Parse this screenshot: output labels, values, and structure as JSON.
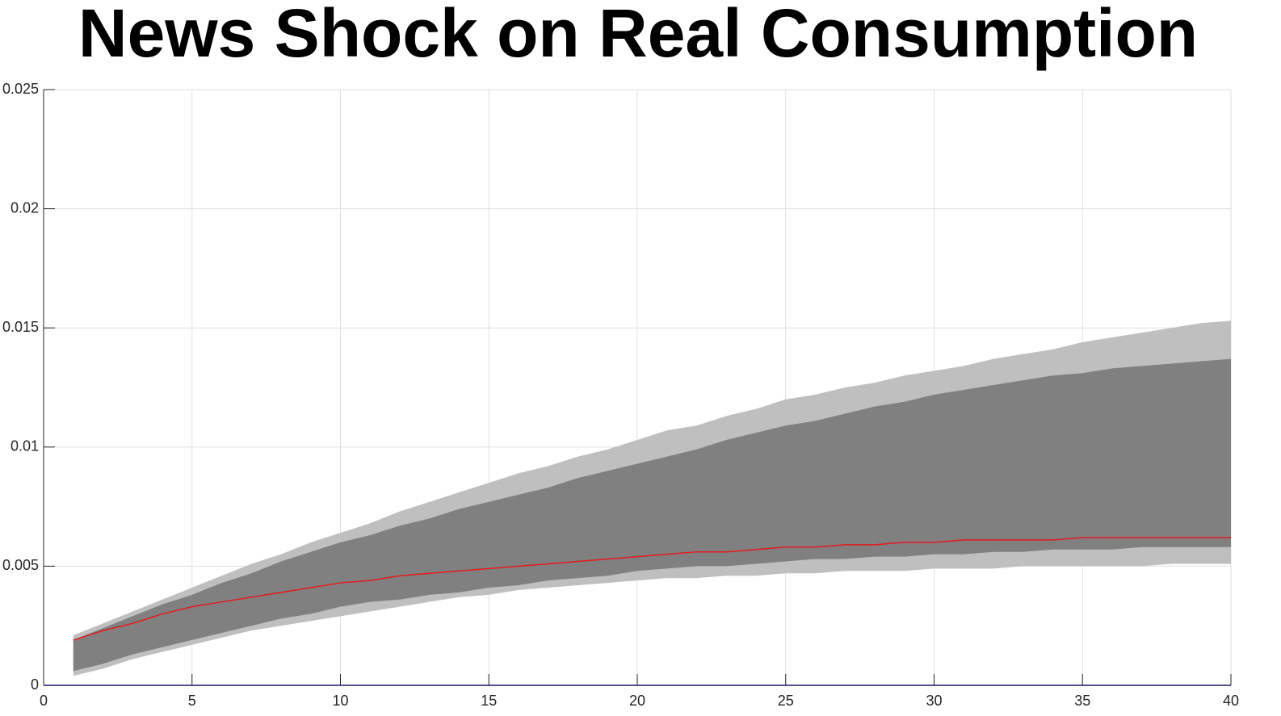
{
  "chart_data": {
    "type": "band_line",
    "title": "News Shock on Real Consumption",
    "x": [
      1,
      2,
      3,
      4,
      5,
      6,
      7,
      8,
      9,
      10,
      11,
      12,
      13,
      14,
      15,
      16,
      17,
      18,
      19,
      20,
      21,
      22,
      23,
      24,
      25,
      26,
      27,
      28,
      29,
      30,
      31,
      32,
      33,
      34,
      35,
      36,
      37,
      38,
      39,
      40
    ],
    "bands": [
      {
        "color": "#bfbfbf",
        "upper": [
          0.0021,
          0.0026,
          0.0031,
          0.0036,
          0.0041,
          0.0046,
          0.0051,
          0.0055,
          0.006,
          0.0064,
          0.0068,
          0.0073,
          0.0077,
          0.0081,
          0.0085,
          0.0089,
          0.0092,
          0.0096,
          0.0099,
          0.0103,
          0.0107,
          0.0109,
          0.0113,
          0.0116,
          0.012,
          0.0122,
          0.0125,
          0.0127,
          0.013,
          0.0132,
          0.0134,
          0.0137,
          0.0139,
          0.0141,
          0.0144,
          0.0146,
          0.0148,
          0.015,
          0.0152,
          0.0153
        ],
        "lower": [
          0.0004,
          0.0007,
          0.0011,
          0.0014,
          0.0017,
          0.002,
          0.0023,
          0.0025,
          0.0027,
          0.0029,
          0.0031,
          0.0033,
          0.0035,
          0.0037,
          0.0038,
          0.004,
          0.0041,
          0.0042,
          0.0043,
          0.0044,
          0.0045,
          0.0045,
          0.0046,
          0.0046,
          0.0047,
          0.0047,
          0.0048,
          0.0048,
          0.0048,
          0.0049,
          0.0049,
          0.0049,
          0.005,
          0.005,
          0.005,
          0.005,
          0.005,
          0.0051,
          0.0051,
          0.0051
        ]
      },
      {
        "color": "#808080",
        "upper": [
          0.0019,
          0.0024,
          0.0029,
          0.0034,
          0.0038,
          0.0043,
          0.0047,
          0.0052,
          0.0056,
          0.006,
          0.0063,
          0.0067,
          0.007,
          0.0074,
          0.0077,
          0.008,
          0.0083,
          0.0087,
          0.009,
          0.0093,
          0.0096,
          0.0099,
          0.0103,
          0.0106,
          0.0109,
          0.0111,
          0.0114,
          0.0117,
          0.0119,
          0.0122,
          0.0124,
          0.0126,
          0.0128,
          0.013,
          0.0131,
          0.0133,
          0.0134,
          0.0135,
          0.0136,
          0.0137
        ],
        "lower": [
          0.0006,
          0.0009,
          0.0013,
          0.0016,
          0.0019,
          0.0022,
          0.0025,
          0.0028,
          0.003,
          0.0033,
          0.0035,
          0.0036,
          0.0038,
          0.0039,
          0.0041,
          0.0042,
          0.0044,
          0.0045,
          0.0046,
          0.0048,
          0.0049,
          0.005,
          0.005,
          0.0051,
          0.0052,
          0.0053,
          0.0053,
          0.0054,
          0.0054,
          0.0055,
          0.0055,
          0.0056,
          0.0056,
          0.0057,
          0.0057,
          0.0057,
          0.0058,
          0.0058,
          0.0058,
          0.0058
        ]
      }
    ],
    "series": [
      {
        "color": "#e41a1c",
        "values": [
          0.0019,
          0.0023,
          0.0026,
          0.003,
          0.0033,
          0.0035,
          0.0037,
          0.0039,
          0.0041,
          0.0043,
          0.0044,
          0.0046,
          0.0047,
          0.0048,
          0.0049,
          0.005,
          0.0051,
          0.0052,
          0.0053,
          0.0054,
          0.0055,
          0.0056,
          0.0056,
          0.0057,
          0.0058,
          0.0058,
          0.0059,
          0.0059,
          0.006,
          0.006,
          0.0061,
          0.0061,
          0.0061,
          0.0061,
          0.0062,
          0.0062,
          0.0062,
          0.0062,
          0.0062,
          0.0062
        ]
      }
    ],
    "hline": {
      "value": 0,
      "color": "#0000ff"
    },
    "xlim": [
      0,
      40
    ],
    "xticks": [
      0,
      5,
      10,
      15,
      20,
      25,
      30,
      35,
      40
    ],
    "ylim": [
      0,
      0.025
    ],
    "yticks": [
      0,
      0.005,
      0.01,
      0.015,
      0.02,
      0.025
    ],
    "grid": true
  }
}
